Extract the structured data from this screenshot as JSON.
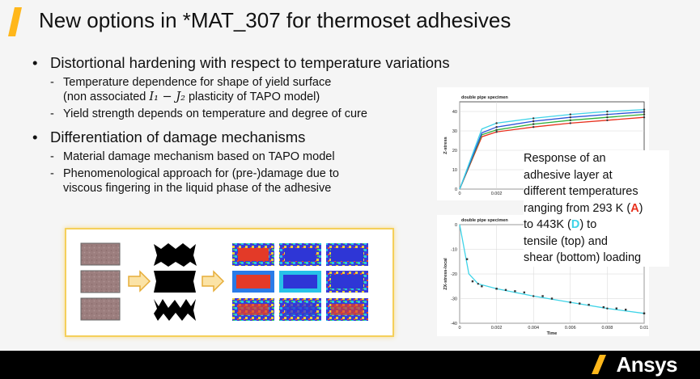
{
  "slide": {
    "title": "New options in *MAT_307 for thermoset adhesives",
    "accent_color": "#ffb71b"
  },
  "bullets": [
    {
      "text": "Distortional hardening with respect to temperature variations",
      "sub": [
        {
          "line1": "Temperature dependence for shape of yield surface",
          "line2_pre": "(non associated ",
          "math": "I₁ − J₂",
          "line2_post": " plasticity of TAPO model)"
        },
        {
          "line1": "Yield strength depends on temperature and degree of cure"
        }
      ]
    },
    {
      "text": "Differentiation of damage mechanisms",
      "sub": [
        {
          "line1": "Material damage mechanism based on TAPO model"
        },
        {
          "line1": "Phenomenological approach for (pre-)damage due to",
          "line2": "viscous fingering in the liquid phase of the adhesive"
        }
      ]
    }
  ],
  "response_text": {
    "l1": "Response of an",
    "l2": "adhesive layer at",
    "l3": "different temperatures",
    "l4_pre": "ranging from 293 K (",
    "A": "A",
    "l4_post": ")",
    "l5_pre": "to 443K (",
    "D": "D",
    "l5_post": ") to",
    "l6": "tensile (top) and",
    "l7": "shear (bottom) loading"
  },
  "chart_data": [
    {
      "type": "line",
      "title": "double pipe specimen",
      "ylabel": "Z-stress",
      "xlabel": "",
      "yticks": [
        "0",
        "10",
        "20",
        "30",
        "40"
      ],
      "xticks": [
        "0",
        "0.002"
      ],
      "ylim": [
        0,
        45
      ],
      "series": [
        {
          "color": "#e8301c",
          "values": [
            [
              0,
              0
            ],
            [
              0.0012,
              27
            ],
            [
              0.002,
              29.5
            ],
            [
              0.004,
              32
            ],
            [
              0.006,
              34
            ],
            [
              0.008,
              35.5
            ],
            [
              0.01,
              37
            ]
          ]
        },
        {
          "color": "#2fae3a",
          "values": [
            [
              0,
              0
            ],
            [
              0.0012,
              28
            ],
            [
              0.002,
              30.5
            ],
            [
              0.004,
              33.5
            ],
            [
              0.006,
              35.5
            ],
            [
              0.008,
              37
            ],
            [
              0.01,
              38.5
            ]
          ]
        },
        {
          "color": "#2a52d8",
          "values": [
            [
              0,
              0
            ],
            [
              0.0012,
              29
            ],
            [
              0.002,
              32
            ],
            [
              0.004,
              35
            ],
            [
              0.006,
              37
            ],
            [
              0.008,
              38.5
            ],
            [
              0.01,
              39.8
            ]
          ]
        },
        {
          "color": "#3fd4e8",
          "values": [
            [
              0,
              0
            ],
            [
              0.0012,
              31
            ],
            [
              0.002,
              34
            ],
            [
              0.004,
              36.5
            ],
            [
              0.006,
              38.5
            ],
            [
              0.008,
              40
            ],
            [
              0.01,
              41
            ]
          ]
        }
      ]
    },
    {
      "type": "line",
      "title": "double pipe specimen",
      "ylabel": "ZX-stress-local",
      "xlabel": "Time",
      "yticks": [
        "0",
        "-10",
        "-20",
        "-30",
        "-40"
      ],
      "xticks": [
        "0",
        "0.002",
        "0.004",
        "0.006",
        "0.008",
        "0.01"
      ],
      "ylim": [
        -40,
        0
      ],
      "series": [
        {
          "color": "#3fd4e8",
          "values": [
            [
              0,
              0
            ],
            [
              0.0005,
              -20
            ],
            [
              0.001,
              -24
            ],
            [
              0.002,
              -26
            ],
            [
              0.004,
              -29
            ],
            [
              0.006,
              -31.5
            ],
            [
              0.008,
              -34
            ],
            [
              0.01,
              -36
            ]
          ]
        }
      ],
      "markers": [
        [
          0.0004,
          -14
        ],
        [
          0.0007,
          -23
        ],
        [
          0.0012,
          -25
        ],
        [
          0.002,
          -26
        ],
        [
          0.0025,
          -26.5
        ],
        [
          0.003,
          -27
        ],
        [
          0.0035,
          -27.5
        ],
        [
          0.0045,
          -29
        ],
        [
          0.005,
          -30
        ],
        [
          0.006,
          -31.5
        ],
        [
          0.0065,
          -32
        ],
        [
          0.007,
          -32.5
        ],
        [
          0.0078,
          -33.5
        ],
        [
          0.0085,
          -34
        ],
        [
          0.009,
          -34.5
        ],
        [
          0.01,
          -36
        ]
      ]
    }
  ],
  "footer": {
    "logo_text": "Ansys"
  }
}
